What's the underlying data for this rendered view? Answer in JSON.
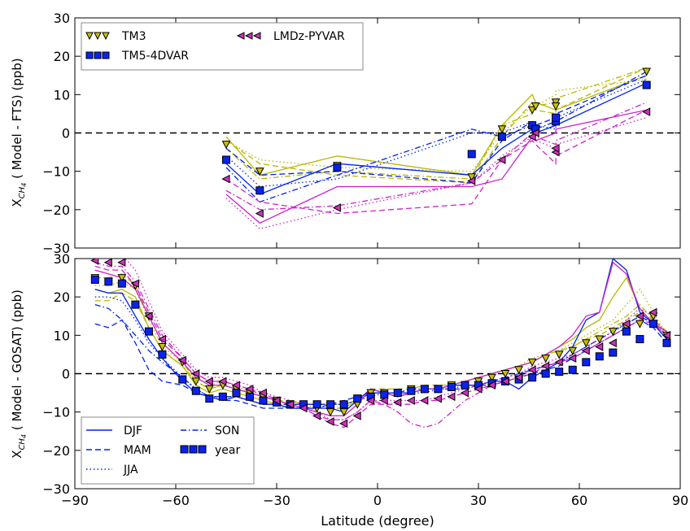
{
  "figure": {
    "xlabel": "Latitude (degree)",
    "ylabel_top_prefix": "X",
    "ylabel_top_sub": "CH",
    "ylabel_top_subsub": "4",
    "ylabel_top_suffix": " ( Model - FTS) (ppb)",
    "ylabel_bottom_prefix": "X",
    "ylabel_bottom_sub": "CH",
    "ylabel_bottom_subsub": "4",
    "ylabel_bottom_suffix": " ( Model - GOSAT) (ppb)"
  },
  "legend_models": {
    "tm3": "TM3",
    "tm5": "TM5-4DVAR",
    "lmdz": "LMDz-PYVAR"
  },
  "legend_seasons": {
    "djf": "DJF",
    "mam": "MAM",
    "jja": "JJA",
    "son": "SON",
    "year": "year"
  },
  "colors": {
    "TM3": "#b8b800",
    "TM5-4DVAR": "#0022ee",
    "LMDz-PYVAR": "#cc22cc",
    "TM3_marker": "#c8c000",
    "TM5_marker": "#0a22ee",
    "LMDz_marker": "#cc33bb"
  },
  "chart_data": [
    {
      "type": "line",
      "panel": "top",
      "xlim": [
        -90,
        90
      ],
      "ylim": [
        -30,
        30
      ],
      "xticks": [
        -90,
        -60,
        -30,
        0,
        30,
        60,
        90
      ],
      "yticks": [
        -30,
        -20,
        -10,
        0,
        10,
        20,
        30
      ],
      "legend_placement": "top-left",
      "reference_line": 0,
      "x": [
        -45,
        -35,
        -12,
        28,
        37,
        46,
        47,
        53,
        53,
        80
      ],
      "series": [
        {
          "name": "TM3",
          "season": "year",
          "values": [
            -3,
            -10,
            -8.5,
            -11.5,
            1,
            6,
            7,
            8,
            7,
            16
          ]
        },
        {
          "name": "TM3",
          "season": "DJF",
          "values": [
            -1,
            -11,
            -6,
            -11,
            2,
            10,
            8,
            6,
            6,
            15
          ]
        },
        {
          "name": "TM3",
          "season": "MAM",
          "values": [
            -2,
            -8,
            -11,
            -13,
            -1,
            8,
            6,
            5,
            6,
            17
          ]
        },
        {
          "name": "TM3",
          "season": "JJA",
          "values": [
            -2,
            -7,
            -9,
            -10,
            0,
            7,
            7,
            10,
            11,
            14
          ]
        },
        {
          "name": "TM3",
          "season": "SON",
          "values": [
            -4,
            -12,
            -10,
            -12,
            2,
            5,
            7,
            8,
            9,
            17
          ]
        },
        {
          "name": "TM5-4DVAR",
          "season": "year",
          "values": [
            -7,
            -15,
            -9,
            -5.5,
            -1,
            2,
            1,
            3,
            4,
            12.5
          ]
        },
        {
          "name": "TM5-4DVAR",
          "season": "DJF",
          "values": [
            -8,
            -16,
            -8,
            -11,
            -4,
            1,
            0,
            2,
            2,
            13
          ]
        },
        {
          "name": "TM5-4DVAR",
          "season": "MAM",
          "values": [
            -4,
            -11,
            -10,
            -13,
            -2,
            3,
            2,
            4,
            5,
            15
          ]
        },
        {
          "name": "TM5-4DVAR",
          "season": "JJA",
          "values": [
            -6,
            -14,
            -12,
            0,
            0,
            3,
            2,
            1,
            4,
            14
          ]
        },
        {
          "name": "TM5-4DVAR",
          "season": "SON",
          "values": [
            -9,
            -18,
            -11,
            1,
            -1,
            2,
            1,
            3,
            3,
            16
          ]
        },
        {
          "name": "LMDz-PYVAR",
          "season": "year",
          "values": [
            -12,
            -21,
            -19.5,
            -12.5,
            -7,
            -1,
            0,
            -5,
            -4,
            5.5
          ]
        },
        {
          "name": "LMDz-PYVAR",
          "season": "DJF",
          "values": [
            -16,
            -23.5,
            -14,
            -14,
            -12,
            -1,
            -2,
            0,
            1,
            6
          ]
        },
        {
          "name": "LMDz-PYVAR",
          "season": "MAM",
          "values": [
            -12,
            -18,
            -21,
            -18.5,
            -7,
            -2,
            -3,
            -8,
            -6,
            6
          ]
        },
        {
          "name": "LMDz-PYVAR",
          "season": "JJA",
          "values": [
            -17,
            -25,
            -20,
            -13,
            -6,
            -1,
            -2,
            -4,
            -3,
            4
          ]
        },
        {
          "name": "LMDz-PYVAR",
          "season": "SON",
          "values": [
            -15,
            -20,
            -19,
            -13,
            -7,
            0,
            -1,
            -3,
            -2,
            8
          ]
        }
      ]
    },
    {
      "type": "line",
      "panel": "bottom",
      "xlim": [
        -90,
        90
      ],
      "ylim": [
        -30,
        30
      ],
      "xticks": [
        -90,
        -60,
        -30,
        0,
        30,
        60,
        90
      ],
      "yticks": [
        -30,
        -20,
        -10,
        0,
        10,
        20,
        30
      ],
      "legend_placement": "bottom-left",
      "reference_line": 0,
      "x": [
        -84,
        -80,
        -76,
        -72,
        -68,
        -64,
        -58,
        -54,
        -50,
        -46,
        -42,
        -38,
        -34,
        -30,
        -26,
        -22,
        -18,
        -14,
        -10,
        -6,
        -2,
        2,
        6,
        10,
        14,
        18,
        22,
        26,
        30,
        34,
        38,
        42,
        46,
        50,
        54,
        58,
        62,
        66,
        70,
        74,
        78,
        82,
        86
      ],
      "series": [
        {
          "name": "TM3",
          "season": "year",
          "values": [
            25,
            24,
            25,
            23,
            15,
            7,
            3,
            -2,
            -4,
            -3,
            -4,
            -5,
            -6,
            -7,
            -8,
            -8,
            -9,
            -10,
            -10,
            -8,
            -5,
            -5,
            -5,
            -4,
            -4,
            -4,
            -3,
            -3,
            -2,
            -1,
            0,
            1,
            3,
            4,
            5,
            6,
            8,
            9,
            11,
            12,
            13,
            15,
            10
          ]
        },
        {
          "name": "TM3",
          "season": "DJF",
          "values": [
            22,
            21,
            22,
            20,
            12,
            6,
            2,
            -3,
            -5,
            -4,
            -5,
            -6,
            -7,
            -8,
            -9,
            -9,
            -10,
            -11,
            -11,
            -8,
            -4,
            -5,
            -6,
            -5,
            -4,
            -4,
            -3,
            -2,
            -1,
            0,
            1,
            2,
            3,
            5,
            7,
            9,
            12,
            14,
            20,
            25,
            17,
            13,
            11
          ]
        },
        {
          "name": "TM3",
          "season": "MAM",
          "values": [
            19,
            19,
            21,
            19,
            12,
            6,
            2,
            -2,
            -4,
            -3,
            -4,
            -5,
            -6,
            -7,
            -7,
            -8,
            -8,
            -8,
            -8,
            -7,
            -4,
            -4,
            -4,
            -4,
            -3,
            -3,
            -3,
            -2,
            -1,
            0,
            1,
            2,
            3,
            5,
            6,
            7,
            9,
            10,
            12,
            14,
            16,
            14,
            11
          ]
        },
        {
          "name": "TM3",
          "season": "JJA",
          "values": [
            23,
            23,
            24,
            22,
            14,
            7,
            3,
            -1,
            -3,
            -2,
            -3,
            -5,
            -6,
            -7,
            -8,
            -8,
            -8,
            -8,
            -8,
            -7,
            -5,
            -5,
            -5,
            -5,
            -4,
            -4,
            -3,
            -2,
            -1,
            0,
            1,
            2,
            4,
            5,
            6,
            8,
            10,
            12,
            14,
            18,
            22,
            16,
            10
          ]
        },
        {
          "name": "TM3",
          "season": "SON",
          "values": [
            25,
            25,
            26,
            23,
            15,
            8,
            3,
            -2,
            -4,
            -3,
            -4,
            -5,
            -6,
            -7,
            -8,
            -8,
            -9,
            -9,
            -9,
            -7,
            -5,
            -5,
            -5,
            -5,
            -4,
            -4,
            -3,
            -2,
            -1,
            0,
            1,
            2,
            3,
            5,
            6,
            7,
            9,
            11,
            13,
            15,
            18,
            14,
            10
          ]
        },
        {
          "name": "TM5-4DVAR",
          "season": "year",
          "values": [
            24.5,
            24,
            23.5,
            18,
            11,
            5,
            -1.5,
            -4.5,
            -6.5,
            -6,
            -5,
            -6,
            -7,
            -7.5,
            -8,
            -8,
            -8,
            -8,
            -8,
            -6.5,
            -6,
            -5.5,
            -5,
            -4.5,
            -4,
            -4,
            -3.5,
            -3,
            -3,
            -2.5,
            -2,
            -1.5,
            -1,
            0,
            0.5,
            1,
            3,
            4.5,
            5.5,
            11,
            9,
            13,
            8
          ]
        },
        {
          "name": "TM5-4DVAR",
          "season": "DJF",
          "values": [
            22,
            21,
            21,
            15,
            9,
            4,
            -2,
            -5,
            -6,
            -7,
            -6,
            -7,
            -8,
            -8,
            -9,
            -9,
            -9,
            -9,
            -10,
            -7,
            -4,
            -5,
            -6,
            -5,
            -4,
            -4,
            -3,
            -3,
            -3,
            -2,
            -2,
            -4,
            -1,
            1,
            3,
            7,
            14,
            16,
            30,
            27,
            16,
            13,
            9
          ]
        },
        {
          "name": "TM5-4DVAR",
          "season": "MAM",
          "values": [
            13,
            12,
            14,
            8,
            1,
            -2,
            -3,
            -5,
            -6,
            -7,
            -7,
            -8,
            -9,
            -9,
            -9,
            -9,
            -9,
            -8,
            -7,
            -6,
            -5,
            -5,
            -5,
            -5,
            -4,
            -4,
            -4,
            -4,
            -3,
            -3,
            -2,
            -1,
            0,
            1,
            2,
            4,
            6,
            8,
            10,
            12,
            14,
            12,
            8
          ]
        },
        {
          "name": "TM5-4DVAR",
          "season": "JJA",
          "values": [
            20,
            20,
            19,
            14,
            8,
            4,
            -1,
            -4,
            -6,
            -6,
            -6,
            -7,
            -8,
            -8,
            -8,
            -8,
            -8,
            -8,
            -8,
            -7,
            -6,
            -5,
            -5,
            -5,
            -5,
            -4,
            -4,
            -3,
            -3,
            -2,
            -1,
            0,
            1,
            2,
            3,
            5,
            7,
            9,
            11,
            13,
            15,
            13,
            9
          ]
        },
        {
          "name": "TM5-4DVAR",
          "season": "SON",
          "values": [
            18,
            17,
            14,
            10,
            6,
            3,
            -1,
            -4,
            -6,
            -6,
            -6,
            -7,
            -8,
            -8,
            -8,
            -8,
            -8,
            -8,
            -8,
            -7,
            -5,
            -5,
            -5,
            -4,
            -4,
            -4,
            -3,
            -3,
            -3,
            -2,
            -1,
            0,
            1,
            2,
            3,
            5,
            7,
            9,
            11,
            13,
            15,
            13,
            9
          ]
        },
        {
          "name": "LMDz-PYVAR",
          "season": "year",
          "values": [
            29.5,
            29,
            29,
            23.5,
            15,
            9,
            3.5,
            0,
            -2,
            -2,
            -3,
            -4,
            -5,
            -7,
            -8,
            -9,
            -11,
            -12.5,
            -13,
            -11,
            -7,
            -7,
            -7.5,
            -7,
            -7,
            -6.5,
            -6,
            -5,
            -4,
            -3,
            -2,
            -1,
            1,
            2,
            3,
            4,
            6,
            7,
            8,
            13,
            15,
            16,
            10
          ]
        },
        {
          "name": "LMDz-PYVAR",
          "season": "DJF",
          "values": [
            27,
            26,
            25,
            22,
            15,
            8,
            3,
            -1,
            -3,
            -3,
            -4,
            -5,
            -6,
            -7,
            -8,
            -9,
            -10,
            -11,
            -11,
            -8,
            -4,
            -5,
            -6,
            -5,
            -4,
            -4,
            -3,
            -2,
            -1,
            0,
            1,
            2,
            3,
            5,
            7,
            10,
            15,
            16,
            29,
            26,
            17,
            13,
            11
          ]
        },
        {
          "name": "LMDz-PYVAR",
          "season": "MAM",
          "values": [
            28,
            27,
            27,
            23,
            16,
            9,
            4,
            0,
            -2,
            -2,
            -3,
            -4,
            -6,
            -7,
            -8,
            -9,
            -11,
            -13,
            -14,
            -11,
            -8,
            -8,
            -8,
            -8,
            -7,
            -7,
            -6,
            -5,
            -4,
            -3,
            -2,
            -1,
            0,
            2,
            3,
            4,
            6,
            8,
            10,
            12,
            14,
            13,
            10
          ]
        },
        {
          "name": "LMDz-PYVAR",
          "season": "JJA",
          "values": [
            30,
            30,
            31,
            27,
            19,
            11,
            5,
            1,
            -1,
            -1,
            -2,
            -3,
            -5,
            -6,
            -7,
            -8,
            -10,
            -12,
            -12,
            -10,
            -7,
            -7,
            -7,
            -7,
            -7,
            -6,
            -5,
            -4,
            -3,
            -2,
            -1,
            0,
            2,
            3,
            4,
            5,
            7,
            9,
            11,
            14,
            17,
            15,
            10
          ]
        },
        {
          "name": "LMDz-PYVAR",
          "season": "SON",
          "values": [
            29,
            28,
            28,
            24,
            17,
            10,
            4,
            0,
            -2,
            -2,
            -3,
            -4,
            -5,
            -7,
            -8,
            -9,
            -11,
            -12,
            -12,
            -10,
            -7,
            -8,
            -10,
            -13,
            -14,
            -13,
            -10,
            -7,
            -5,
            -3,
            -2,
            -1,
            1,
            2,
            3,
            4,
            6,
            8,
            10,
            12,
            14,
            13,
            10
          ]
        }
      ]
    }
  ]
}
